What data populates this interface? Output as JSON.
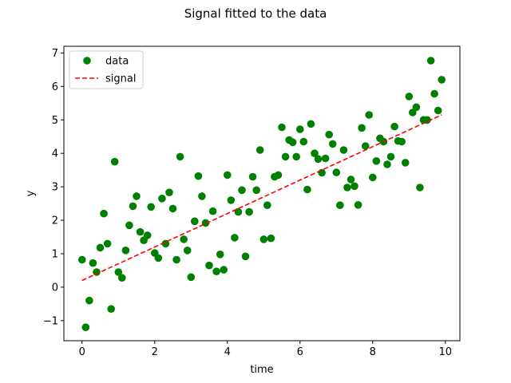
{
  "chart_data": {
    "type": "scatter",
    "title": "Signal fitted to the data",
    "xlabel": "time",
    "ylabel": "y",
    "xlim": [
      -0.5,
      10.4
    ],
    "ylim": [
      -1.6,
      7.2
    ],
    "xticks": [
      0,
      2,
      4,
      6,
      8,
      10
    ],
    "yticks": [
      -1,
      0,
      1,
      2,
      3,
      4,
      5,
      6,
      7
    ],
    "grid": false,
    "legend_position": "upper left",
    "series": [
      {
        "name": "data",
        "kind": "scatter",
        "color": "#008000",
        "x": [
          0.0,
          0.1,
          0.2,
          0.3,
          0.4,
          0.5,
          0.6,
          0.7,
          0.8,
          0.9,
          1.0,
          1.1,
          1.2,
          1.3,
          1.4,
          1.5,
          1.6,
          1.7,
          1.8,
          1.9,
          2.0,
          2.1,
          2.2,
          2.3,
          2.4,
          2.5,
          2.6,
          2.7,
          2.8,
          2.9,
          3.0,
          3.1,
          3.2,
          3.3,
          3.4,
          3.5,
          3.6,
          3.7,
          3.8,
          3.9,
          4.0,
          4.1,
          4.2,
          4.3,
          4.4,
          4.5,
          4.6,
          4.7,
          4.8,
          4.9,
          5.0,
          5.1,
          5.2,
          5.3,
          5.4,
          5.5,
          5.6,
          5.7,
          5.8,
          5.9,
          6.0,
          6.1,
          6.2,
          6.3,
          6.4,
          6.5,
          6.6,
          6.7,
          6.8,
          6.9,
          7.0,
          7.1,
          7.2,
          7.3,
          7.4,
          7.5,
          7.6,
          7.7,
          7.8,
          7.9,
          8.0,
          8.1,
          8.2,
          8.3,
          8.4,
          8.5,
          8.6,
          8.7,
          8.8,
          8.9,
          9.0,
          9.1,
          9.2,
          9.3,
          9.4,
          9.5,
          9.6,
          9.7,
          9.8,
          9.9
        ],
        "y": [
          0.82,
          -1.2,
          -0.4,
          0.72,
          0.45,
          1.18,
          2.2,
          1.3,
          -0.65,
          3.75,
          0.45,
          0.28,
          1.1,
          1.85,
          2.42,
          2.72,
          1.65,
          1.4,
          1.55,
          2.4,
          1.02,
          0.87,
          2.65,
          1.3,
          2.83,
          2.35,
          0.82,
          3.9,
          1.43,
          1.1,
          0.3,
          1.97,
          3.32,
          2.72,
          1.92,
          0.65,
          2.27,
          0.47,
          0.98,
          0.52,
          3.35,
          2.6,
          1.48,
          2.25,
          2.9,
          0.92,
          2.25,
          3.3,
          2.9,
          4.1,
          1.43,
          2.45,
          1.46,
          3.3,
          3.35,
          4.78,
          3.9,
          4.4,
          4.33,
          3.9,
          4.72,
          4.35,
          2.92,
          4.88,
          4.0,
          3.83,
          3.42,
          3.85,
          4.56,
          4.28,
          3.43,
          2.45,
          4.1,
          2.98,
          3.22,
          3.02,
          2.46,
          4.76,
          4.22,
          5.15,
          3.28,
          3.77,
          4.45,
          4.35,
          3.67,
          3.9,
          4.8,
          4.37,
          4.35,
          3.72,
          5.7,
          5.22,
          5.38,
          2.98,
          5.0,
          5.0,
          6.77,
          5.78,
          5.28,
          6.2
        ]
      },
      {
        "name": "signal",
        "kind": "line",
        "color": "#ff0000",
        "linestyle": "dashed",
        "x": [
          0.0,
          9.9
        ],
        "y": [
          0.2,
          5.15
        ]
      }
    ]
  }
}
